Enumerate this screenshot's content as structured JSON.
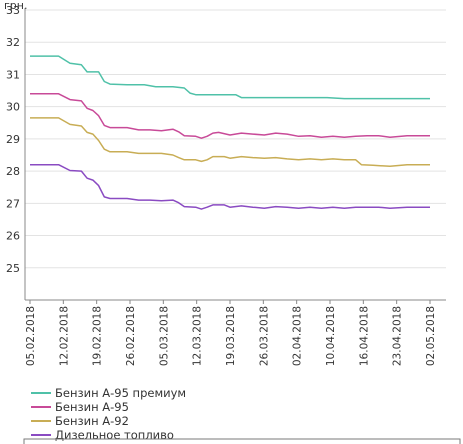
{
  "chart_data": {
    "type": "line",
    "ylabel": "грн.",
    "ylim": [
      24,
      33
    ],
    "yticks": [
      25,
      26,
      27,
      28,
      29,
      30,
      31,
      32,
      33
    ],
    "grid": "horizontal",
    "legend_position": "bottom-left",
    "x_labels": [
      "05.02.2018",
      "12.02.2018",
      "19.02.2018",
      "26.02.2018",
      "05.03.2018",
      "12.03.2018",
      "19.03.2018",
      "26.03.2018",
      "02.04.2018",
      "10.04.2018",
      "16.04.2018",
      "23.04.2018",
      "02.05.2018"
    ],
    "series": [
      {
        "name": "Бензин А-95 премиум",
        "color": "#4fc1a8",
        "points": [
          [
            0,
            31.57
          ],
          [
            5,
            31.57
          ],
          [
            7,
            31.35
          ],
          [
            9,
            31.3
          ],
          [
            10,
            31.08
          ],
          [
            12,
            31.08
          ],
          [
            13,
            30.78
          ],
          [
            14,
            30.7
          ],
          [
            17,
            30.68
          ],
          [
            20,
            30.68
          ],
          [
            22,
            30.62
          ],
          [
            25,
            30.62
          ],
          [
            27,
            30.58
          ],
          [
            28,
            30.42
          ],
          [
            29,
            30.37
          ],
          [
            33,
            30.37
          ],
          [
            36,
            30.37
          ],
          [
            37,
            30.28
          ],
          [
            40,
            30.28
          ],
          [
            45,
            30.28
          ],
          [
            50,
            30.28
          ],
          [
            52,
            30.28
          ],
          [
            55,
            30.25
          ],
          [
            60,
            30.25
          ],
          [
            66,
            30.25
          ],
          [
            70,
            30.25
          ]
        ]
      },
      {
        "name": "Бензин А-95",
        "color": "#c84a98",
        "points": [
          [
            0,
            30.4
          ],
          [
            5,
            30.4
          ],
          [
            7,
            30.22
          ],
          [
            9,
            30.18
          ],
          [
            10,
            29.95
          ],
          [
            11,
            29.88
          ],
          [
            12,
            29.72
          ],
          [
            13,
            29.42
          ],
          [
            14,
            29.35
          ],
          [
            17,
            29.35
          ],
          [
            19,
            29.28
          ],
          [
            21,
            29.28
          ],
          [
            23,
            29.25
          ],
          [
            25,
            29.3
          ],
          [
            26,
            29.22
          ],
          [
            27,
            29.1
          ],
          [
            29,
            29.08
          ],
          [
            30,
            29.02
          ],
          [
            31,
            29.08
          ],
          [
            32,
            29.18
          ],
          [
            33,
            29.2
          ],
          [
            35,
            29.12
          ],
          [
            37,
            29.18
          ],
          [
            39,
            29.15
          ],
          [
            41,
            29.12
          ],
          [
            43,
            29.18
          ],
          [
            45,
            29.15
          ],
          [
            47,
            29.08
          ],
          [
            49,
            29.1
          ],
          [
            51,
            29.05
          ],
          [
            53,
            29.08
          ],
          [
            55,
            29.05
          ],
          [
            57,
            29.08
          ],
          [
            59,
            29.1
          ],
          [
            61,
            29.1
          ],
          [
            63,
            29.05
          ],
          [
            66,
            29.1
          ],
          [
            70,
            29.1
          ]
        ]
      },
      {
        "name": "Бензин А-92",
        "color": "#c8ad55",
        "points": [
          [
            0,
            29.65
          ],
          [
            5,
            29.65
          ],
          [
            7,
            29.45
          ],
          [
            9,
            29.4
          ],
          [
            10,
            29.2
          ],
          [
            11,
            29.15
          ],
          [
            12,
            28.95
          ],
          [
            13,
            28.68
          ],
          [
            14,
            28.6
          ],
          [
            17,
            28.6
          ],
          [
            19,
            28.55
          ],
          [
            21,
            28.55
          ],
          [
            23,
            28.55
          ],
          [
            25,
            28.5
          ],
          [
            26,
            28.42
          ],
          [
            27,
            28.35
          ],
          [
            29,
            28.35
          ],
          [
            30,
            28.3
          ],
          [
            31,
            28.35
          ],
          [
            32,
            28.45
          ],
          [
            34,
            28.45
          ],
          [
            35,
            28.4
          ],
          [
            37,
            28.45
          ],
          [
            39,
            28.42
          ],
          [
            41,
            28.4
          ],
          [
            43,
            28.42
          ],
          [
            45,
            28.38
          ],
          [
            47,
            28.35
          ],
          [
            49,
            28.38
          ],
          [
            51,
            28.35
          ],
          [
            53,
            28.38
          ],
          [
            55,
            28.35
          ],
          [
            57,
            28.35
          ],
          [
            58,
            28.2
          ],
          [
            60,
            28.18
          ],
          [
            63,
            28.15
          ],
          [
            66,
            28.2
          ],
          [
            70,
            28.2
          ]
        ]
      },
      {
        "name": "Дизельное топливо",
        "color": "#8a4bc2",
        "points": [
          [
            0,
            28.2
          ],
          [
            5,
            28.2
          ],
          [
            7,
            28.02
          ],
          [
            9,
            28.0
          ],
          [
            10,
            27.78
          ],
          [
            11,
            27.72
          ],
          [
            12,
            27.55
          ],
          [
            13,
            27.2
          ],
          [
            14,
            27.15
          ],
          [
            17,
            27.15
          ],
          [
            19,
            27.1
          ],
          [
            21,
            27.1
          ],
          [
            23,
            27.08
          ],
          [
            25,
            27.1
          ],
          [
            26,
            27.02
          ],
          [
            27,
            26.9
          ],
          [
            29,
            26.88
          ],
          [
            30,
            26.82
          ],
          [
            31,
            26.88
          ],
          [
            32,
            26.95
          ],
          [
            34,
            26.95
          ],
          [
            35,
            26.88
          ],
          [
            37,
            26.92
          ],
          [
            39,
            26.88
          ],
          [
            41,
            26.85
          ],
          [
            43,
            26.9
          ],
          [
            45,
            26.88
          ],
          [
            47,
            26.85
          ],
          [
            49,
            26.88
          ],
          [
            51,
            26.85
          ],
          [
            53,
            26.88
          ],
          [
            55,
            26.85
          ],
          [
            57,
            26.88
          ],
          [
            59,
            26.88
          ],
          [
            61,
            26.88
          ],
          [
            63,
            26.85
          ],
          [
            66,
            26.88
          ],
          [
            70,
            26.88
          ]
        ]
      }
    ]
  }
}
